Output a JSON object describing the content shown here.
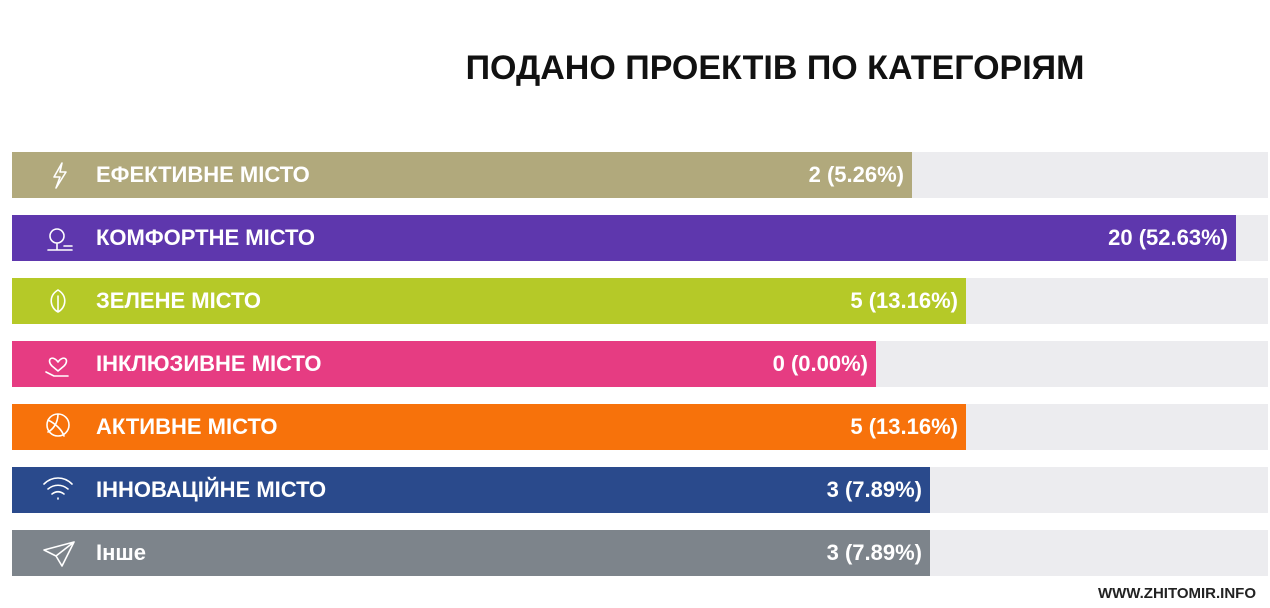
{
  "chart_data": {
    "type": "bar",
    "orientation": "horizontal",
    "title": "ПОДАНО ПРОЕКТІВ ПО КАТЕГОРІЯМ",
    "categories": [
      "ЕФЕКТИВНЕ МІСТО",
      "КОМФОРТНЕ МІСТО",
      "ЗЕЛЕНЕ МІСТО",
      "ІНКЛЮЗИВНЕ МІСТО",
      "АКТИВНЕ МІСТО",
      "ІННОВАЦІЙНЕ МІСТО",
      "Інше"
    ],
    "values": [
      2,
      20,
      5,
      0,
      5,
      3,
      3
    ],
    "value_labels": [
      "2 (5.26%)",
      "20 (52.63%)",
      "5 (13.16%)",
      "0 (0.00%)",
      "5 (13.16%)",
      "3 (7.89%)",
      "3 (7.89%)"
    ],
    "colors": [
      "#b1a97c",
      "#5e37ad",
      "#b5c928",
      "#e63c82",
      "#f7720b",
      "#2a4a8c",
      "#7d848b"
    ],
    "watermark": "WWW.ZHITOMIR.INFO"
  }
}
